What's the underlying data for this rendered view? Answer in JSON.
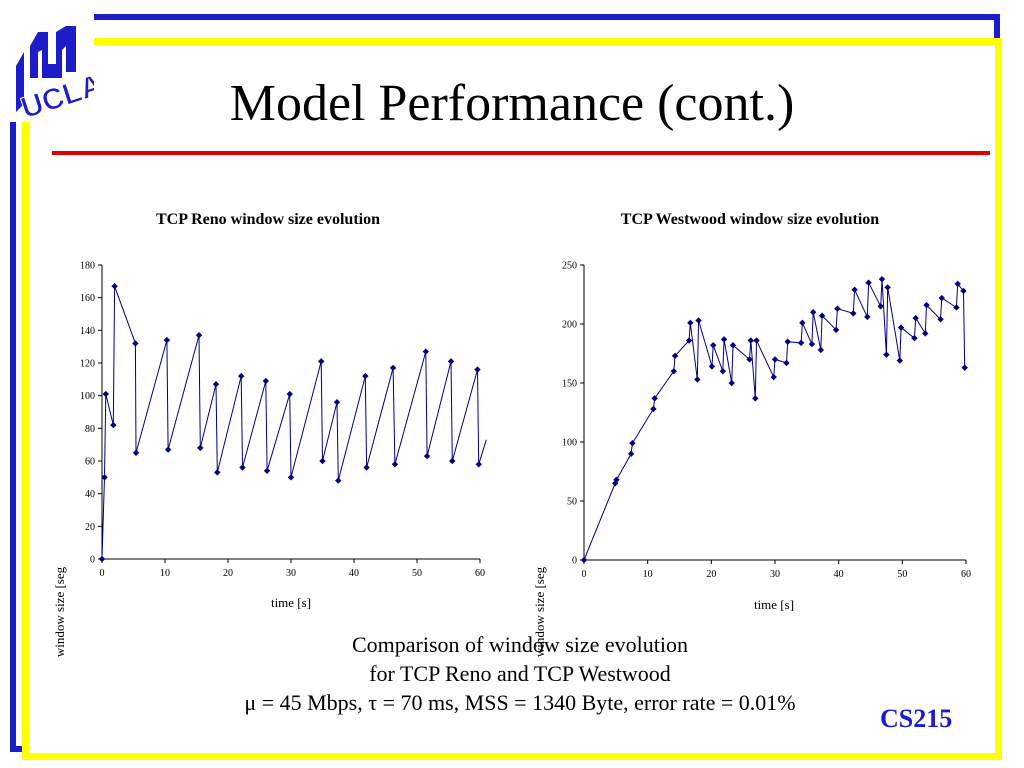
{
  "slide": {
    "title": "Model Performance (cont.)",
    "logo_text": "UCLA",
    "caption_lines": [
      "Comparison of window size evolution",
      "for TCP Reno and TCP Westwood",
      "μ = 45 Mbps, τ = 70 ms, MSS = 1340 Byte, error rate = 0.01%"
    ],
    "course": "CS215",
    "colors": {
      "frame_blue": "#1c1cc8",
      "frame_yellow": "#ffff00",
      "rule_red": "#e00000",
      "series": "#000080"
    }
  },
  "chart_data": [
    {
      "type": "line",
      "title": "TCP Reno window size evolution",
      "xlabel": "time [s]",
      "ylabel": "window size [seg",
      "xlim": [
        0,
        60
      ],
      "ylim": [
        0,
        180
      ],
      "xticks": [
        0,
        10,
        20,
        30,
        40,
        50,
        60
      ],
      "yticks": [
        0,
        20,
        40,
        60,
        80,
        100,
        120,
        140,
        160,
        180
      ],
      "grid": false,
      "series": [
        {
          "x": [
            0.0,
            0.4,
            0.6,
            1.8,
            2.0,
            5.3,
            5.4,
            10.3,
            10.5,
            15.4,
            15.6,
            18.1,
            18.3,
            22.1,
            22.3,
            26.0,
            26.2,
            29.8,
            30.0,
            34.8,
            35.0,
            37.3,
            37.5,
            41.8,
            42.0,
            46.2,
            46.5,
            51.4,
            51.6,
            55.4,
            55.6,
            59.6,
            59.8,
            61.0
          ],
          "y": [
            0,
            50,
            101,
            82,
            167,
            132,
            65,
            134,
            67,
            137,
            68,
            107,
            53,
            112,
            56,
            109,
            54,
            101,
            50,
            121,
            60,
            96,
            48,
            112,
            56,
            117,
            58,
            127,
            63,
            121,
            60,
            116,
            58,
            73
          ]
        }
      ]
    },
    {
      "type": "line",
      "title": "TCP Westwood window size evolution",
      "xlabel": "time [s]",
      "ylabel": "window size [seg",
      "xlim": [
        0,
        60
      ],
      "ylim": [
        0,
        250
      ],
      "xticks": [
        0,
        10,
        20,
        30,
        40,
        50,
        60
      ],
      "yticks": [
        0,
        50,
        100,
        150,
        200,
        250
      ],
      "grid": false,
      "series": [
        {
          "x": [
            0.0,
            4.9,
            5.1,
            7.4,
            7.6,
            10.9,
            11.1,
            14.1,
            14.3,
            16.5,
            16.7,
            17.8,
            18.0,
            20.1,
            20.3,
            21.8,
            22.0,
            23.2,
            23.4,
            26.0,
            26.2,
            26.9,
            27.1,
            29.8,
            30.0,
            31.8,
            32.0,
            34.1,
            34.3,
            35.8,
            36.0,
            37.2,
            37.4,
            39.6,
            39.8,
            42.3,
            42.5,
            44.5,
            44.7,
            46.6,
            46.8,
            47.5,
            47.7,
            49.6,
            49.8,
            51.9,
            52.1,
            53.6,
            53.8,
            56.0,
            56.2,
            58.5,
            58.7,
            59.6,
            59.8
          ],
          "y": [
            0,
            65,
            68,
            90,
            99,
            128,
            137,
            160,
            173,
            186,
            201,
            153,
            203,
            164,
            182,
            160,
            187,
            150,
            182,
            170,
            186,
            137,
            186,
            155,
            170,
            167,
            185,
            184,
            201,
            183,
            210,
            178,
            207,
            195,
            213,
            209,
            229,
            206,
            235,
            215,
            238,
            174,
            231,
            169,
            197,
            188,
            205,
            192,
            216,
            204,
            222,
            214,
            234,
            228,
            163
          ]
        }
      ]
    }
  ]
}
